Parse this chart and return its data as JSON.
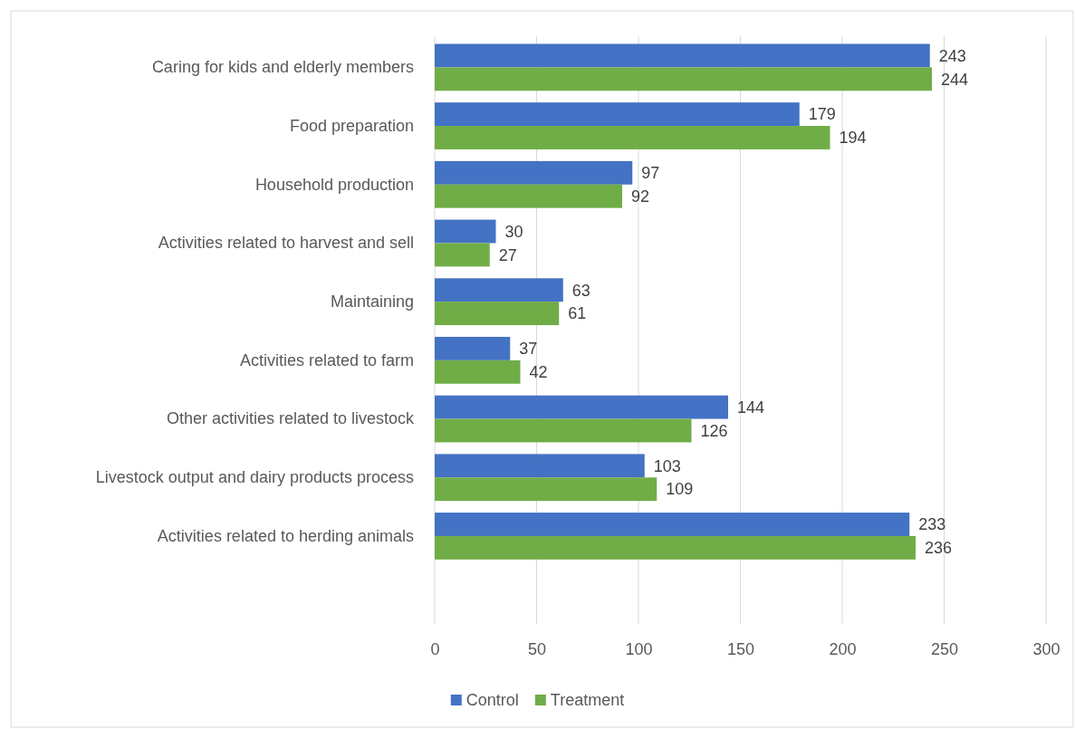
{
  "chart_data": {
    "type": "bar",
    "orientation": "horizontal",
    "categories": [
      "Caring for kids and elderly members",
      "Food preparation",
      "Household production",
      "Activities related to harvest and sell",
      "Maintaining",
      "Activities related to farm",
      "Other activities related to livestock",
      "Livestock output and dairy products process",
      "Activities related to herding animals",
      null
    ],
    "series": [
      {
        "name": "Control",
        "color": "#4472c4",
        "values": [
          243,
          179,
          97,
          30,
          63,
          37,
          144,
          103,
          233,
          null
        ]
      },
      {
        "name": "Treatment",
        "color": "#70ad47",
        "values": [
          244,
          194,
          92,
          27,
          61,
          42,
          126,
          109,
          236,
          null
        ]
      }
    ],
    "xlim": [
      0,
      300
    ],
    "xticks": [
      0,
      50,
      100,
      150,
      200,
      250,
      300
    ],
    "grid": "x",
    "legend": "bottom",
    "data_labels": true
  }
}
